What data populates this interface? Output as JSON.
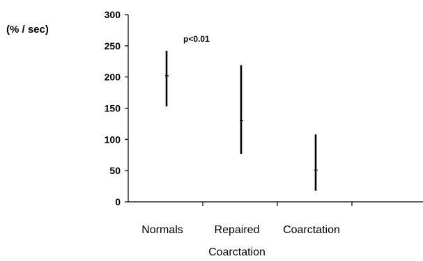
{
  "chart_data": {
    "type": "range",
    "title": "",
    "ylabel": "(% / sec)",
    "xlabel": "",
    "ylim": [
      0,
      300
    ],
    "yticks": [
      0,
      50,
      100,
      150,
      200,
      250,
      300
    ],
    "categories": [
      "Normals",
      "Repaired\nCoarctation",
      "Coarctation"
    ],
    "series": [
      {
        "low": [
          153,
          77,
          18
        ],
        "mean": [
          202,
          130,
          51
        ],
        "high": [
          242,
          219,
          108
        ]
      }
    ],
    "annotations": [
      {
        "text": "p<0.01",
        "x": "Normals",
        "y": 255
      }
    ],
    "grid": false,
    "legend": "none"
  }
}
